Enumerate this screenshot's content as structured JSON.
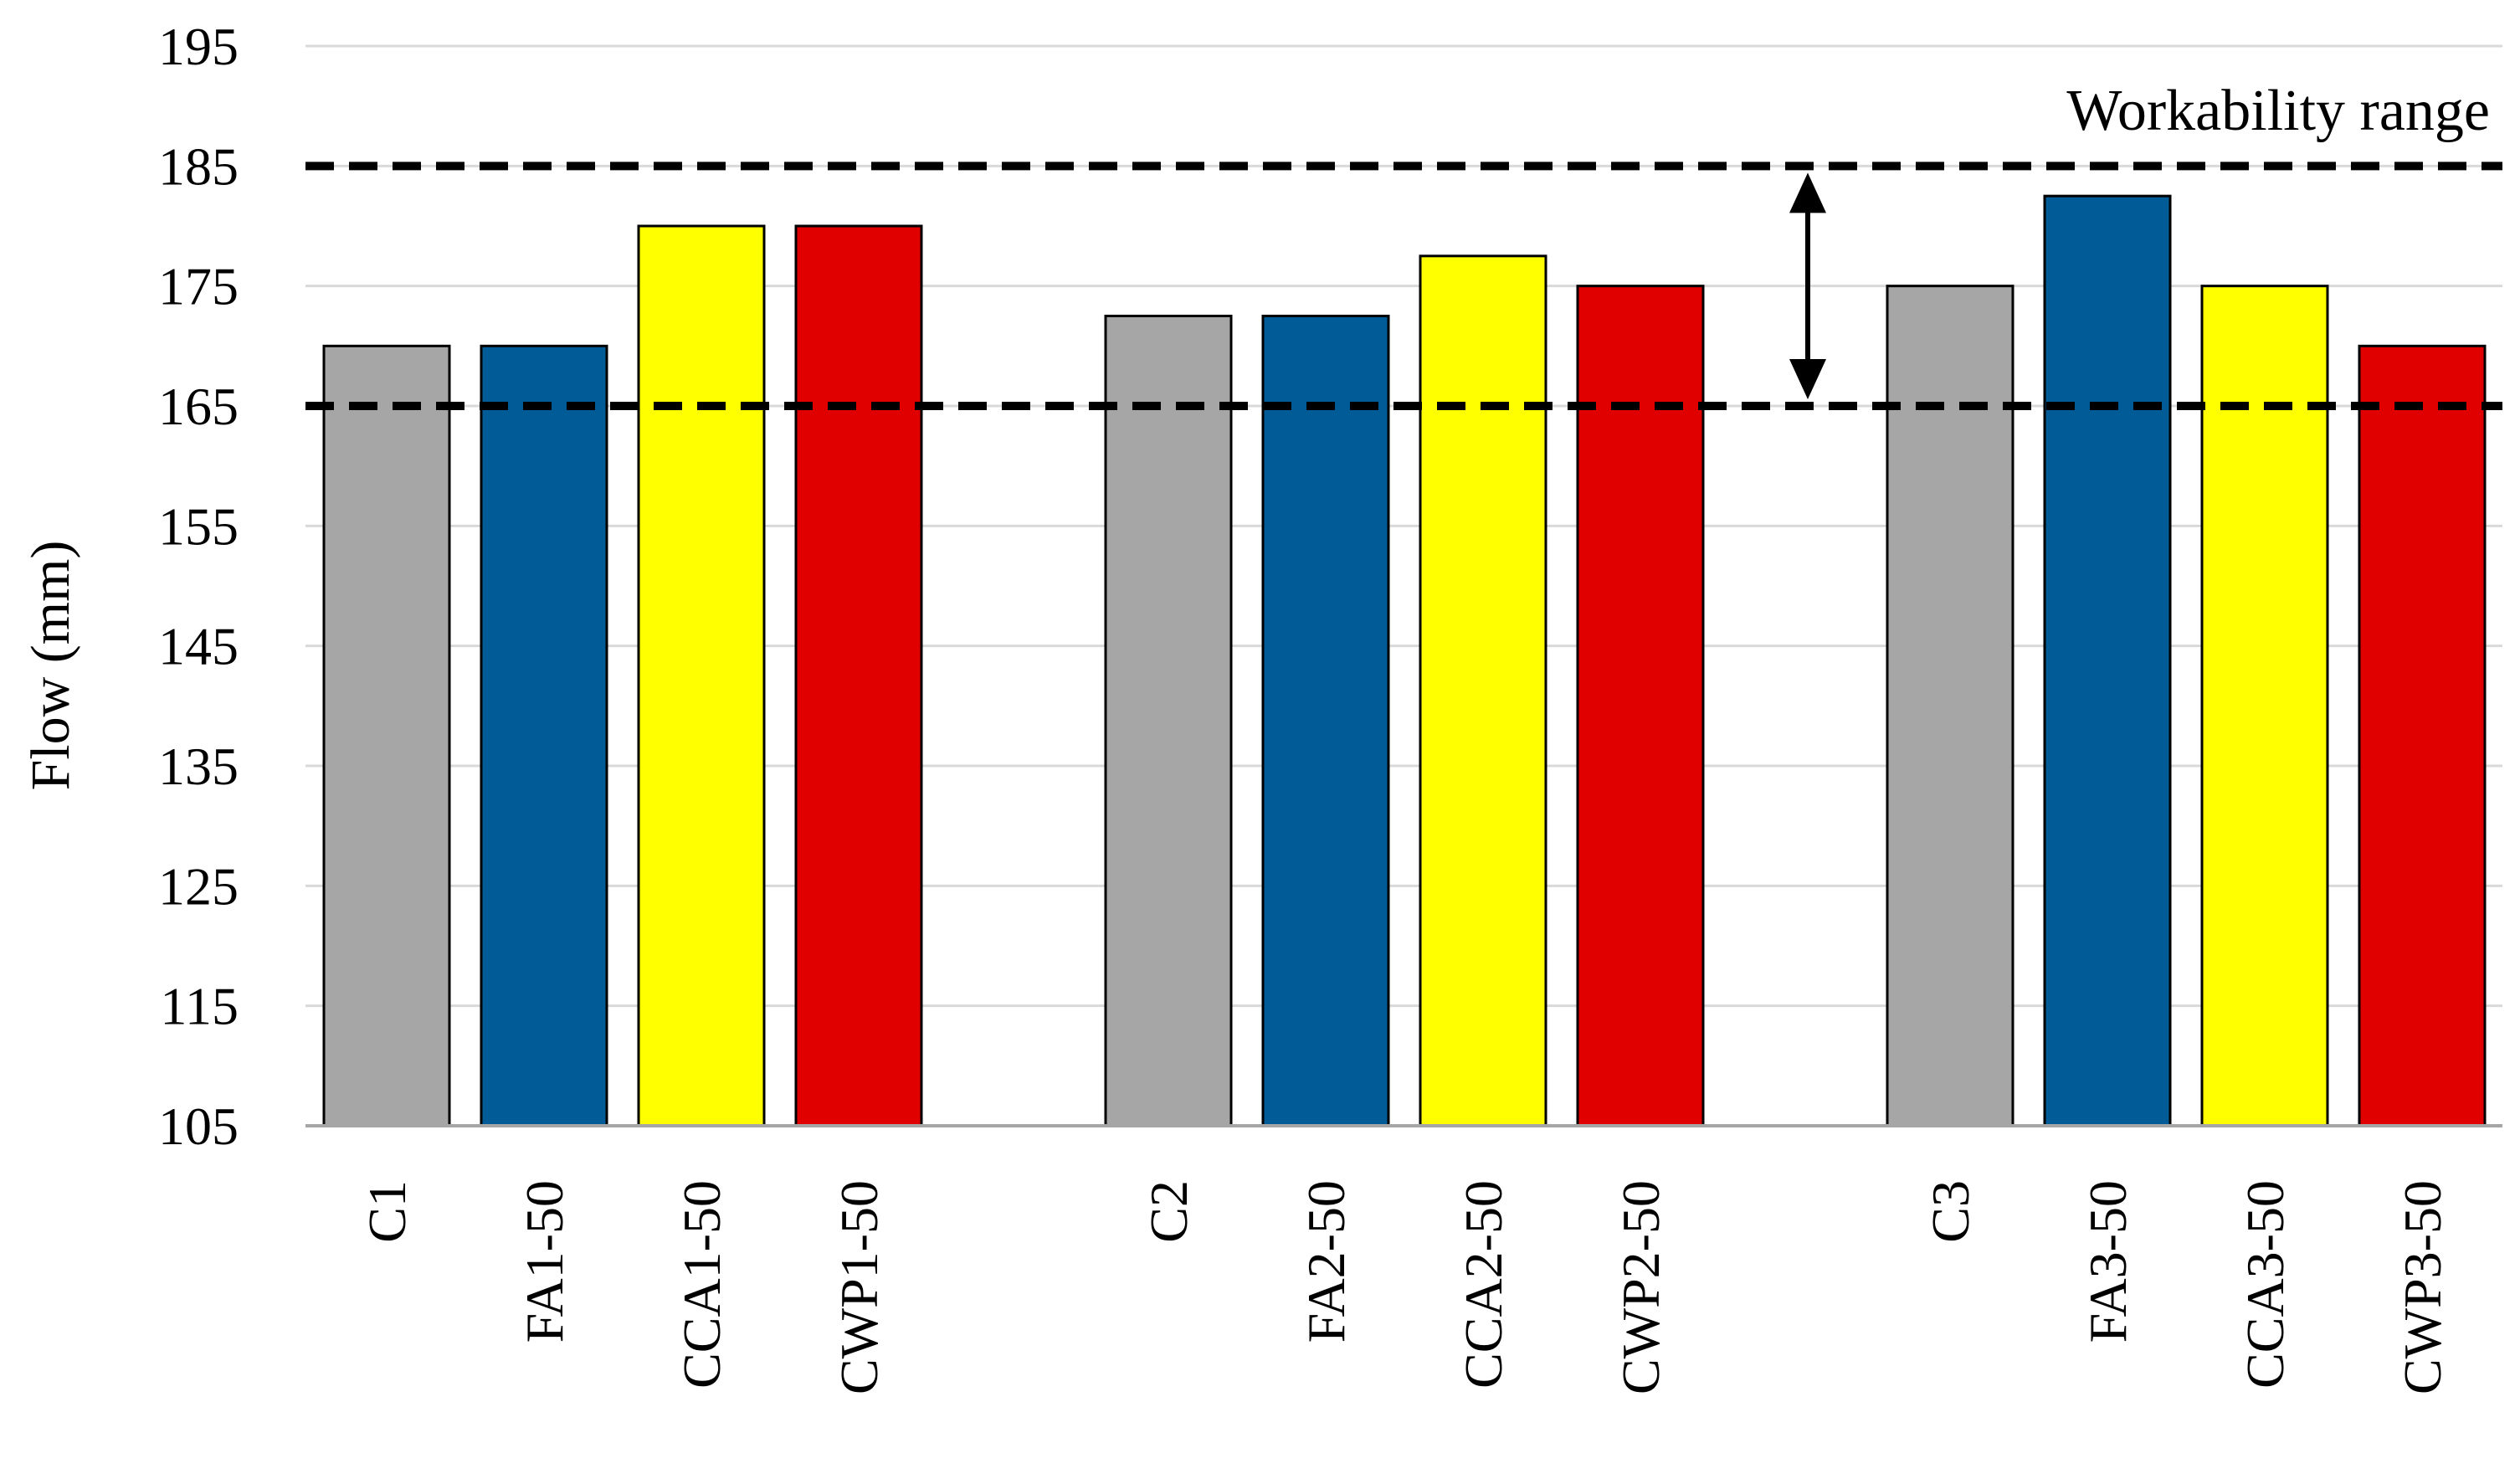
{
  "chart_data": {
    "type": "bar",
    "title": "",
    "xlabel": "",
    "ylabel": "Flow  (mm)",
    "ylim": [
      105,
      195
    ],
    "yticks": [
      105,
      115,
      125,
      135,
      145,
      155,
      165,
      175,
      185,
      195
    ],
    "grid": true,
    "groups": [
      {
        "bars": [
          {
            "label": "C1",
            "value": 170,
            "color": "#A6A6A6"
          },
          {
            "label": "FA1-50",
            "value": 170,
            "color": "#005B96"
          },
          {
            "label": "CCA1-50",
            "value": 180,
            "color": "#FFFF00"
          },
          {
            "label": "CWP1-50",
            "value": 180,
            "color": "#E00000"
          }
        ]
      },
      {
        "bars": [
          {
            "label": "C2",
            "value": 172.5,
            "color": "#A6A6A6"
          },
          {
            "label": "FA2-50",
            "value": 172.5,
            "color": "#005B96"
          },
          {
            "label": "CCA2-50",
            "value": 177.5,
            "color": "#FFFF00"
          },
          {
            "label": "CWP2-50",
            "value": 175,
            "color": "#E00000"
          }
        ]
      },
      {
        "bars": [
          {
            "label": "C3",
            "value": 175,
            "color": "#A6A6A6"
          },
          {
            "label": "FA3-50",
            "value": 182.5,
            "color": "#005B96"
          },
          {
            "label": "CCA3-50",
            "value": 175,
            "color": "#FFFF00"
          },
          {
            "label": "CWP3-50",
            "value": 170,
            "color": "#E00000"
          }
        ]
      }
    ],
    "reference_lines": [
      165,
      185
    ],
    "annotation": {
      "text": "Workability range",
      "from": 165,
      "to": 185
    }
  }
}
